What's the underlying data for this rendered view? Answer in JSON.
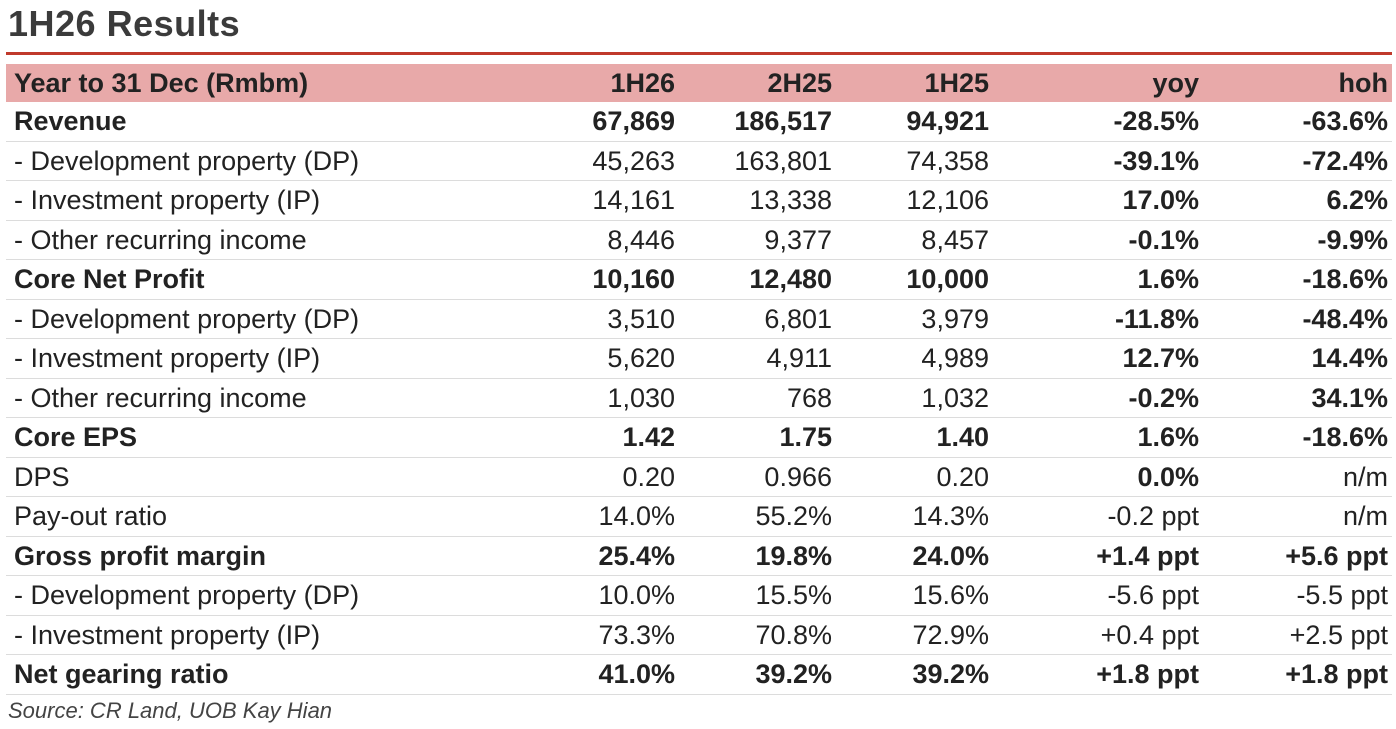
{
  "title": "1H26 Results",
  "table": {
    "headers": [
      "Year to 31 Dec (Rmbm)",
      "1H26",
      "2H25",
      "1H25",
      "yoy",
      "hoh"
    ],
    "rows": [
      {
        "label": "Revenue",
        "bold": true,
        "cells": [
          "67,869",
          "186,517",
          "94,921",
          "-28.5%",
          "-63.6%"
        ],
        "boldCells": [
          true,
          true,
          true,
          true,
          true
        ]
      },
      {
        "label": "- Development property (DP)",
        "bold": false,
        "cells": [
          "45,263",
          "163,801",
          "74,358",
          "-39.1%",
          "-72.4%"
        ],
        "boldCells": [
          false,
          false,
          false,
          true,
          true
        ]
      },
      {
        "label": "- Investment property (IP)",
        "bold": false,
        "cells": [
          "14,161",
          "13,338",
          "12,106",
          "17.0%",
          "6.2%"
        ],
        "boldCells": [
          false,
          false,
          false,
          true,
          true
        ]
      },
      {
        "label": "- Other recurring income",
        "bold": false,
        "cells": [
          "8,446",
          "9,377",
          "8,457",
          "-0.1%",
          "-9.9%"
        ],
        "boldCells": [
          false,
          false,
          false,
          true,
          true
        ]
      },
      {
        "label": "Core Net Profit",
        "bold": true,
        "cells": [
          "10,160",
          "12,480",
          "10,000",
          "1.6%",
          "-18.6%"
        ],
        "boldCells": [
          true,
          true,
          true,
          true,
          true
        ]
      },
      {
        "label": "- Development property (DP)",
        "bold": false,
        "cells": [
          "3,510",
          "6,801",
          "3,979",
          "-11.8%",
          "-48.4%"
        ],
        "boldCells": [
          false,
          false,
          false,
          true,
          true
        ]
      },
      {
        "label": "- Investment property (IP)",
        "bold": false,
        "cells": [
          "5,620",
          "4,911",
          "4,989",
          "12.7%",
          "14.4%"
        ],
        "boldCells": [
          false,
          false,
          false,
          true,
          true
        ]
      },
      {
        "label": "- Other recurring income",
        "bold": false,
        "cells": [
          "1,030",
          "768",
          "1,032",
          "-0.2%",
          "34.1%"
        ],
        "boldCells": [
          false,
          false,
          false,
          true,
          true
        ]
      },
      {
        "label": "Core EPS",
        "bold": true,
        "cells": [
          "1.42",
          "1.75",
          "1.40",
          "1.6%",
          "-18.6%"
        ],
        "boldCells": [
          true,
          false,
          true,
          true,
          true
        ]
      },
      {
        "label": "DPS",
        "bold": false,
        "cells": [
          "0.20",
          "0.966",
          "0.20",
          "0.0%",
          "n/m"
        ],
        "boldCells": [
          false,
          false,
          false,
          true,
          false
        ]
      },
      {
        "label": "Pay-out ratio",
        "bold": false,
        "cells": [
          "14.0%",
          "55.2%",
          "14.3%",
          "-0.2 ppt",
          "n/m"
        ],
        "boldCells": [
          false,
          false,
          false,
          false,
          false
        ]
      },
      {
        "label": "Gross profit margin",
        "bold": true,
        "cells": [
          "25.4%",
          "19.8%",
          "24.0%",
          "+1.4 ppt",
          "+5.6 ppt"
        ],
        "boldCells": [
          true,
          true,
          true,
          true,
          true
        ]
      },
      {
        "label": "- Development property (DP)",
        "bold": false,
        "cells": [
          "10.0%",
          "15.5%",
          "15.6%",
          "-5.6 ppt",
          "-5.5 ppt"
        ],
        "boldCells": [
          false,
          false,
          false,
          false,
          false
        ]
      },
      {
        "label": "- Investment property (IP)",
        "bold": false,
        "cells": [
          "73.3%",
          "70.8%",
          "72.9%",
          "+0.4 ppt",
          "+2.5 ppt"
        ],
        "boldCells": [
          false,
          false,
          false,
          false,
          false
        ]
      },
      {
        "label": "Net gearing ratio",
        "bold": true,
        "cells": [
          "41.0%",
          "39.2%",
          "39.2%",
          "+1.8 ppt",
          "+1.8 ppt"
        ],
        "boldCells": [
          true,
          true,
          true,
          true,
          true
        ]
      }
    ]
  },
  "source": "Source: CR Land, UOB Kay Hian",
  "colors": {
    "title_rule": "#c0392b",
    "header_bg": "#e8a9a9"
  }
}
